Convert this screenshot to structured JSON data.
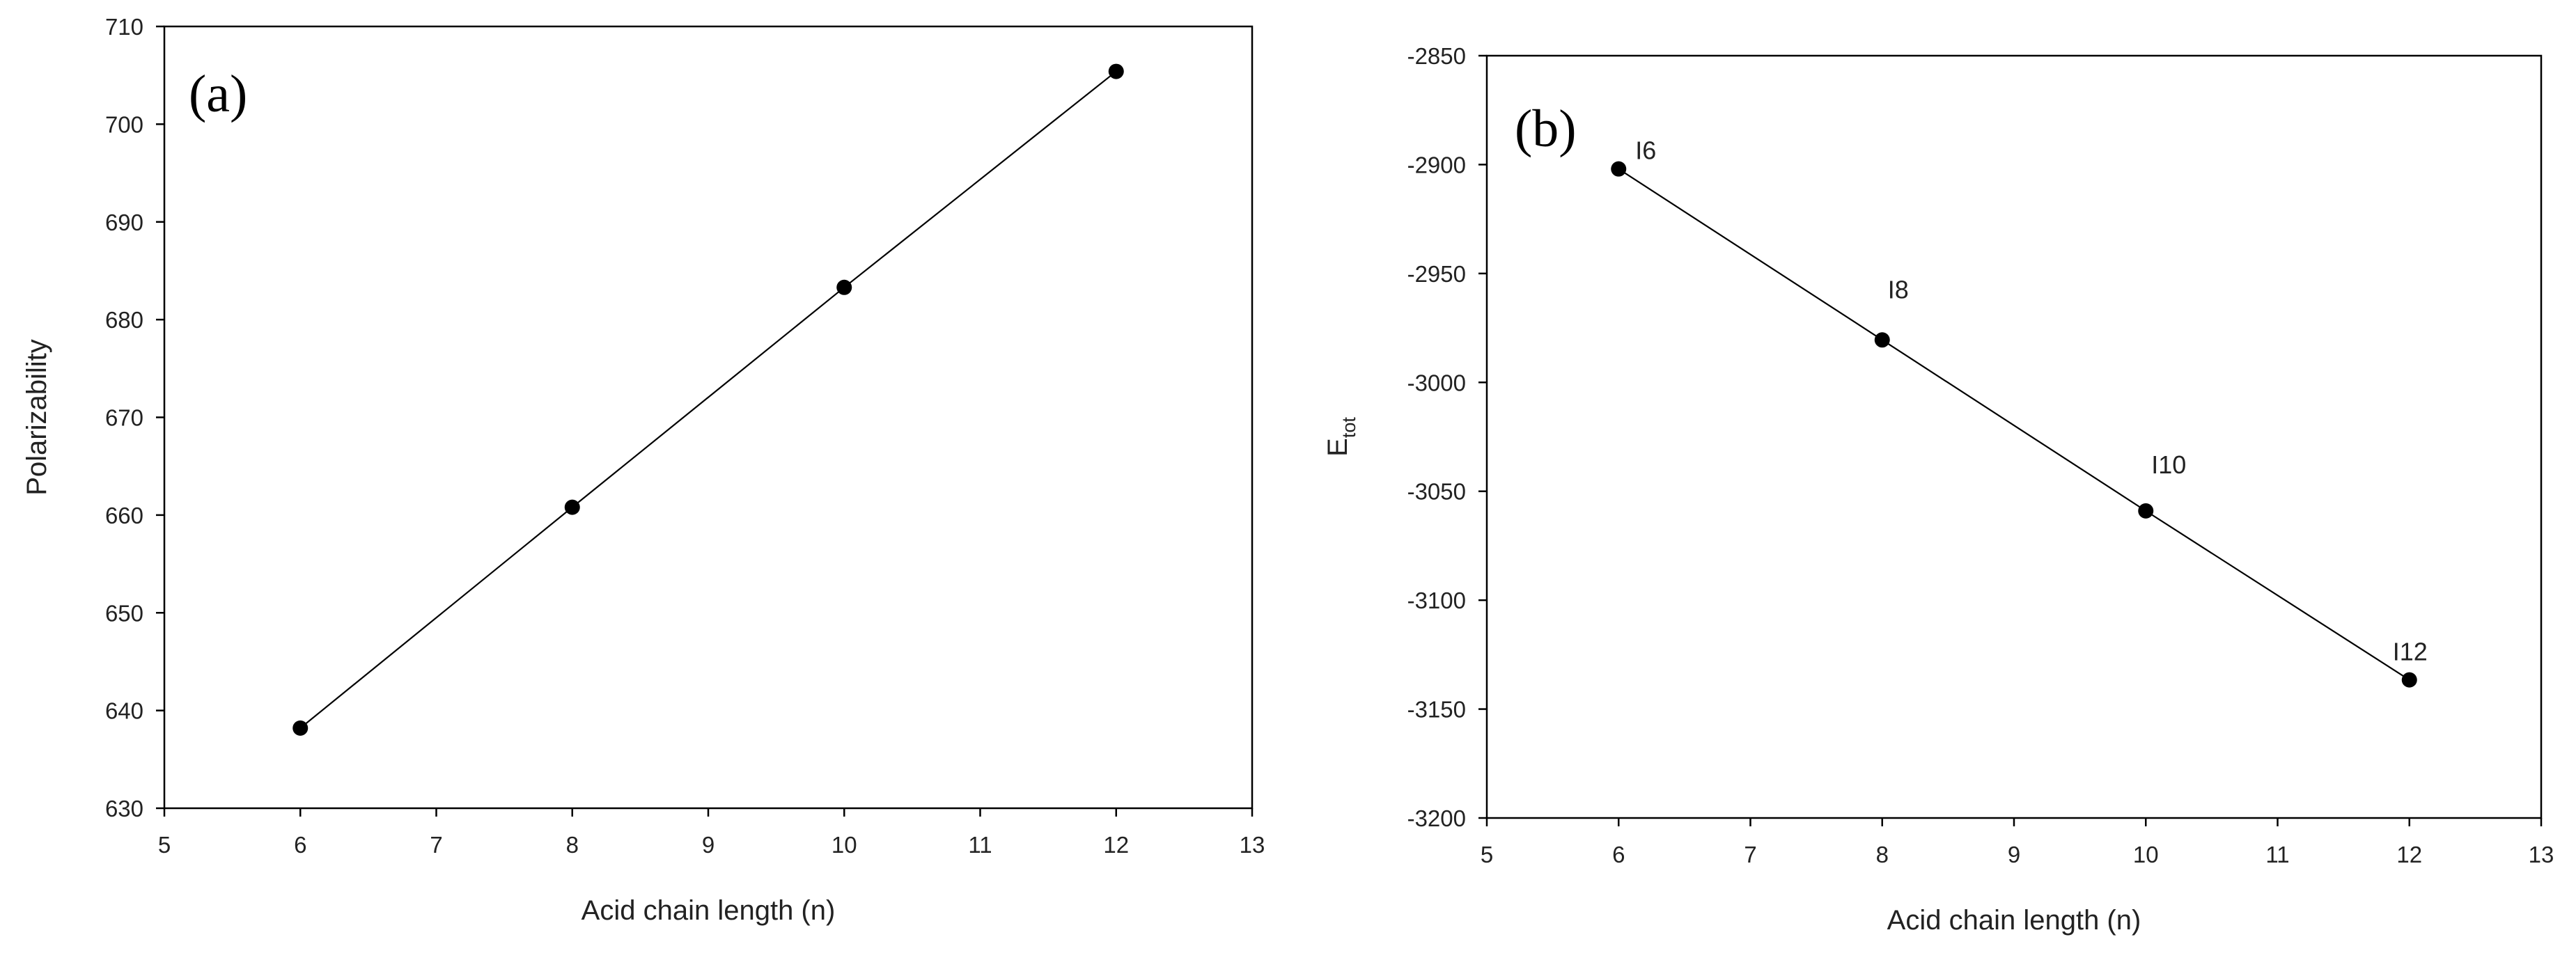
{
  "chart_data": [
    {
      "type": "line",
      "panel_label": "(a)",
      "xlabel": "Acid chain length (n)",
      "ylabel": "Polarizability",
      "x": [
        6,
        8,
        10,
        12
      ],
      "series": [
        {
          "color": "#000000",
          "values": [
            638.2,
            660.8,
            683.3,
            705.4
          ]
        }
      ],
      "xlim": [
        5,
        13
      ],
      "xticks": [
        5,
        6,
        7,
        8,
        9,
        10,
        11,
        12,
        13
      ],
      "ylim": [
        630,
        710
      ],
      "yticks": [
        630,
        640,
        650,
        660,
        670,
        680,
        690,
        700,
        710
      ],
      "grid": false
    },
    {
      "type": "line",
      "panel_label": "(b)",
      "xlabel": "Acid chain length (n)",
      "ylabel": "E",
      "ylabel_sub": "tot",
      "x": [
        6,
        8,
        10,
        12
      ],
      "series": [
        {
          "color": "#000000",
          "values": [
            -2902,
            -2980.5,
            -3059,
            -3136.6
          ],
          "point_labels": [
            "I6",
            "I8",
            "I10",
            "I12"
          ]
        }
      ],
      "xlim": [
        5,
        13
      ],
      "xticks": [
        5,
        6,
        7,
        8,
        9,
        10,
        11,
        12,
        13
      ],
      "ylim": [
        -3200,
        -2850
      ],
      "yticks": [
        -3200,
        -3150,
        -3100,
        -3050,
        -3000,
        -2950,
        -2900,
        -2850
      ],
      "grid": false
    }
  ]
}
